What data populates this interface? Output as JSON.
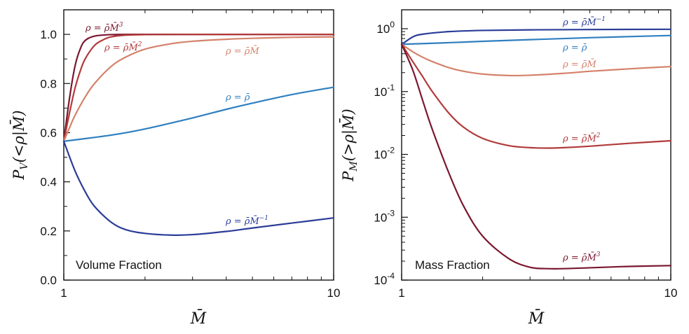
{
  "chart_data": [
    {
      "type": "line",
      "panel": "volume",
      "panel_label": "Volume Fraction",
      "xlabel": "M̄",
      "ylabel": "P_V(<ρ|M̄)",
      "ylabel_main": "P",
      "ylabel_sub": "V",
      "ylabel_rest": "(<ρ|M̄)",
      "xscale": "log",
      "yscale": "linear",
      "xlim": [
        1,
        10
      ],
      "ylim": [
        0,
        1.1
      ],
      "xticks": [
        {
          "value": 1,
          "label": "1"
        },
        {
          "value": 10,
          "label": "10"
        }
      ],
      "yticks": [
        {
          "value": 0.0,
          "label": "0.0"
        },
        {
          "value": 0.2,
          "label": "0.2"
        },
        {
          "value": 0.4,
          "label": "0.4"
        },
        {
          "value": 0.6,
          "label": "0.6"
        },
        {
          "value": 0.8,
          "label": "0.8"
        },
        {
          "value": 1.0,
          "label": "1.0"
        }
      ],
      "series": [
        {
          "name": "ρ = ρ̄M̄³",
          "color": "#7a1730",
          "x": [
            1,
            1.05,
            1.1,
            1.15,
            1.2,
            1.3,
            1.5,
            2,
            3,
            5,
            10
          ],
          "y": [
            0.565,
            0.74,
            0.87,
            0.94,
            0.975,
            0.993,
            0.999,
            1.0,
            1.0,
            1.0,
            1.0
          ]
        },
        {
          "name": "ρ = ρ̄M̄²",
          "color": "#b23a3a",
          "x": [
            1,
            1.05,
            1.1,
            1.15,
            1.2,
            1.3,
            1.4,
            1.5,
            1.7,
            2,
            3,
            5,
            10
          ],
          "y": [
            0.565,
            0.68,
            0.78,
            0.85,
            0.9,
            0.955,
            0.978,
            0.99,
            0.997,
            0.999,
            1.0,
            1.0,
            1.0
          ]
        },
        {
          "name": "ρ = ρ̄M̄",
          "color": "#d4826b",
          "x": [
            1,
            1.05,
            1.1,
            1.2,
            1.3,
            1.5,
            1.7,
            2,
            2.5,
            3,
            4,
            5,
            7,
            10
          ],
          "y": [
            0.565,
            0.62,
            0.67,
            0.745,
            0.8,
            0.87,
            0.908,
            0.94,
            0.962,
            0.972,
            0.98,
            0.984,
            0.988,
            0.99
          ]
        },
        {
          "name": "ρ = ρ̄",
          "color": "#2f7fc0",
          "x": [
            1,
            1.5,
            2,
            3,
            4,
            5,
            7,
            10
          ],
          "y": [
            0.565,
            0.59,
            0.615,
            0.66,
            0.695,
            0.72,
            0.755,
            0.785
          ]
        },
        {
          "name": "ρ = ρ̄M̄⁻¹",
          "color": "#2b3d98",
          "x": [
            1,
            1.1,
            1.2,
            1.3,
            1.5,
            1.7,
            2,
            2.5,
            3,
            4,
            5,
            7,
            10
          ],
          "y": [
            0.565,
            0.445,
            0.36,
            0.3,
            0.235,
            0.205,
            0.19,
            0.183,
            0.185,
            0.198,
            0.212,
            0.232,
            0.253
          ]
        }
      ],
      "annotations": [
        {
          "text": "ρ = ρ̄M̄³",
          "base": "ρ = ρ̄M̄",
          "sup": "3",
          "series": 0
        },
        {
          "text": "ρ = ρ̄M̄²",
          "base": "ρ = ρ̄M̄",
          "sup": "2",
          "series": 1
        },
        {
          "text": "ρ = ρ̄M̄",
          "base": "ρ = ρ̄M̄",
          "sup": "",
          "series": 2
        },
        {
          "text": "ρ = ρ̄",
          "base": "ρ = ρ̄",
          "sup": "",
          "series": 3
        },
        {
          "text": "ρ = ρ̄M̄⁻¹",
          "base": "ρ = ρ̄M̄",
          "sup": "−1",
          "series": 4
        }
      ]
    },
    {
      "type": "line",
      "panel": "mass",
      "panel_label": "Mass Fraction",
      "xlabel": "M̄",
      "ylabel": "P_M(>ρ|M̄)",
      "ylabel_main": "P",
      "ylabel_sub": "M",
      "ylabel_rest": "(>ρ|M̄)",
      "xscale": "log",
      "yscale": "log",
      "xlim": [
        1,
        10
      ],
      "ylim": [
        0.0001,
        2
      ],
      "xticks": [
        {
          "value": 1,
          "label": "1"
        },
        {
          "value": 10,
          "label": "10"
        }
      ],
      "yticks": [
        {
          "value": 0.0001,
          "base": "10",
          "exp": "-4"
        },
        {
          "value": 0.001,
          "base": "10",
          "exp": "-3"
        },
        {
          "value": 0.01,
          "base": "10",
          "exp": "-2"
        },
        {
          "value": 0.1,
          "base": "10",
          "exp": "-1"
        },
        {
          "value": 1,
          "base": "10",
          "exp": "0"
        }
      ],
      "series": [
        {
          "name": "ρ = ρ̄M̄⁻¹",
          "color": "#2b3d98",
          "x": [
            1,
            1.1,
            1.2,
            1.5,
            2,
            3,
            5,
            10
          ],
          "y": [
            0.56,
            0.74,
            0.82,
            0.9,
            0.94,
            0.96,
            0.97,
            0.98
          ]
        },
        {
          "name": "ρ = ρ̄",
          "color": "#2f7fc0",
          "x": [
            1,
            1.5,
            2,
            3,
            5,
            10
          ],
          "y": [
            0.565,
            0.6,
            0.63,
            0.67,
            0.72,
            0.78
          ]
        },
        {
          "name": "ρ = ρ̄M̄",
          "color": "#d4826b",
          "x": [
            1,
            1.1,
            1.2,
            1.3,
            1.5,
            1.7,
            2,
            2.5,
            3,
            4,
            5,
            7,
            10
          ],
          "y": [
            0.565,
            0.43,
            0.35,
            0.3,
            0.24,
            0.21,
            0.19,
            0.18,
            0.182,
            0.195,
            0.21,
            0.23,
            0.25
          ]
        },
        {
          "name": "ρ = ρ̄M̄²",
          "color": "#b23a3a",
          "x": [
            1,
            1.1,
            1.2,
            1.3,
            1.5,
            1.7,
            2,
            2.5,
            3,
            3.5,
            4,
            5,
            7,
            10
          ],
          "y": [
            0.565,
            0.3,
            0.17,
            0.1,
            0.045,
            0.027,
            0.018,
            0.0138,
            0.0128,
            0.0126,
            0.0128,
            0.0135,
            0.015,
            0.0165
          ]
        },
        {
          "name": "ρ = ρ̄M̄³",
          "color": "#7a1730",
          "x": [
            1,
            1.1,
            1.2,
            1.3,
            1.5,
            1.7,
            2,
            2.5,
            3,
            3.5,
            4,
            5,
            7,
            10
          ],
          "y": [
            0.565,
            0.22,
            0.07,
            0.025,
            0.005,
            0.0015,
            0.0005,
            0.00022,
            0.00016,
            0.000152,
            0.000152,
            0.000157,
            0.000165,
            0.00017
          ]
        }
      ],
      "annotations": [
        {
          "text": "ρ = ρ̄M̄⁻¹",
          "base": "ρ = ρ̄M̄",
          "sup": "−1",
          "series": 0
        },
        {
          "text": "ρ = ρ̄",
          "base": "ρ = ρ̄",
          "sup": "",
          "series": 1
        },
        {
          "text": "ρ = ρ̄M̄",
          "base": "ρ = ρ̄M̄",
          "sup": "",
          "series": 2
        },
        {
          "text": "ρ = ρ̄M̄²",
          "base": "ρ = ρ̄M̄",
          "sup": "2",
          "series": 3
        },
        {
          "text": "ρ = ρ̄M̄³",
          "base": "ρ = ρ̄M̄",
          "sup": "3",
          "series": 4
        }
      ]
    }
  ]
}
